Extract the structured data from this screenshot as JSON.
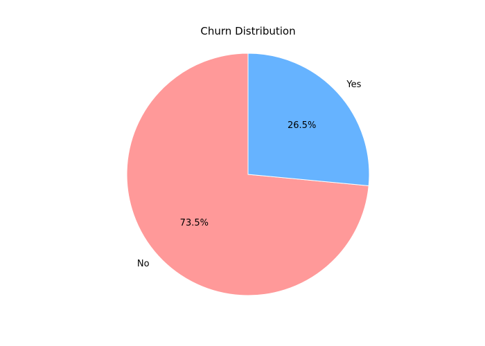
{
  "chart_data": {
    "type": "pie",
    "title": "Churn Distribution",
    "categories": [
      "No",
      "Yes"
    ],
    "values": [
      73.5,
      26.5
    ],
    "value_labels": [
      "73.5%",
      "26.5%"
    ],
    "colors": [
      "#ff9999",
      "#66b3ff"
    ]
  }
}
